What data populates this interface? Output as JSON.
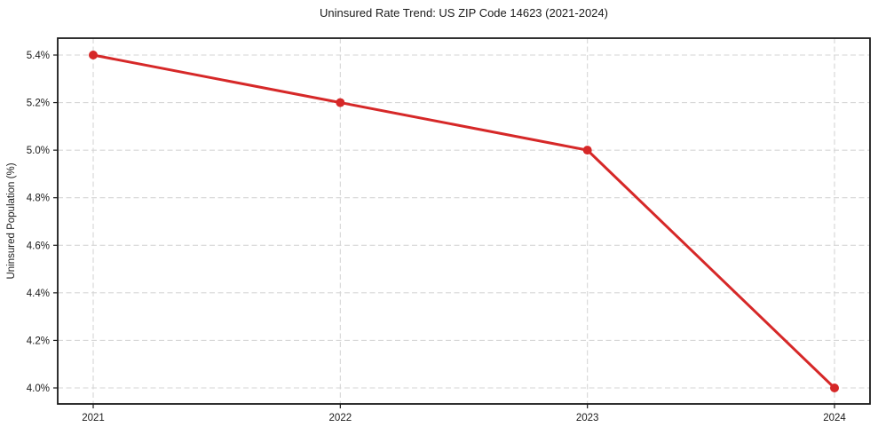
{
  "chart_data": {
    "type": "line",
    "title": "Uninsured Rate Trend: US ZIP Code 14623 (2021-2024)",
    "xlabel": "",
    "ylabel": "Uninsured Population (%)",
    "categories": [
      "2021",
      "2022",
      "2023",
      "2024"
    ],
    "values": [
      5.4,
      5.2,
      5.0,
      4.0
    ],
    "yticks": {
      "values": [
        4.0,
        4.2,
        4.4,
        4.6,
        4.8,
        5.0,
        5.2,
        5.4
      ],
      "labels": [
        "4.0%",
        "4.2%",
        "4.4%",
        "4.6%",
        "4.8%",
        "5.0%",
        "5.2%",
        "5.4%"
      ]
    },
    "ylim": [
      4.0,
      5.4
    ],
    "grid": "dashed-both-directions",
    "legend": "none",
    "colors": {
      "line": "#d62828",
      "marker": "#d62828",
      "grid": "#d6d6d6",
      "axis": "#1a1a1a",
      "background": "#ffffff",
      "text": "#1a1a1a"
    }
  }
}
